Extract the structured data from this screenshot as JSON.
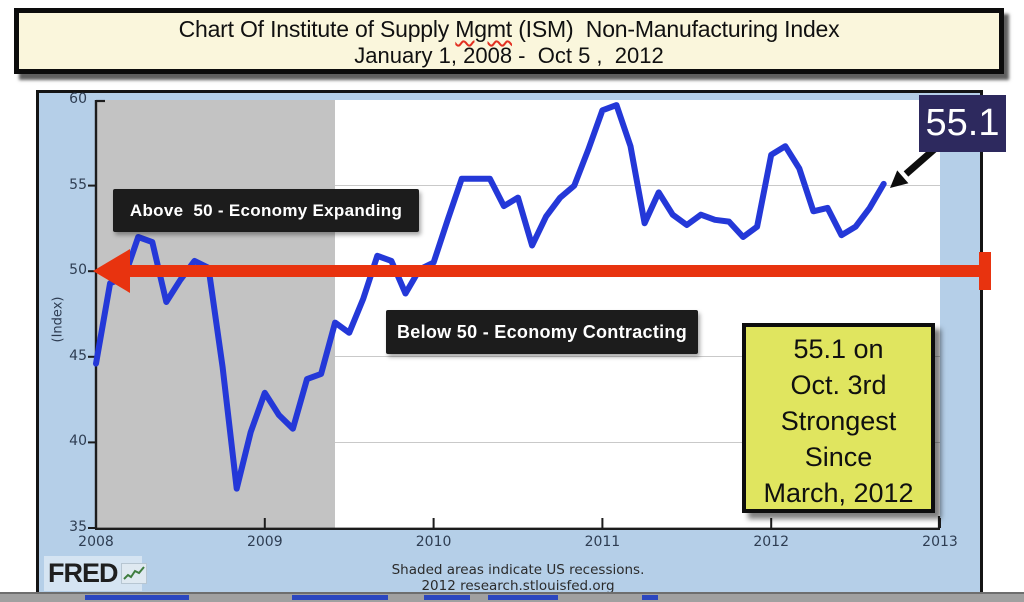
{
  "title": {
    "line1_part1": "Chart Of Institute of Supply ",
    "line1_misspelled": "Mgmt",
    "line1_part2": " (ISM)  Non-Manufacturing Index",
    "line2": "January 1, 2008 -  Oct 5 ,  2012"
  },
  "annotations": {
    "above_label": "Above  50 - Economy Expanding",
    "below_label": "Below 50 - Economy Contracting",
    "callout_value": "55.1",
    "note_lines": [
      "55.1 on",
      "Oct. 3rd",
      "Strongest",
      "Since",
      "March, 2012"
    ]
  },
  "axes": {
    "y_label": "(Index)",
    "y_ticks": [
      60,
      55,
      50,
      45,
      40,
      35
    ],
    "x_ticks": [
      "2008",
      "2009",
      "2010",
      "2011",
      "2012",
      "2013"
    ],
    "gridline_values": [
      55,
      50,
      45,
      40
    ]
  },
  "footer": {
    "recession_note": "Shaded areas indicate US recessions.",
    "source": "2012 research.stlouisfed.org",
    "logo_text": "FRED",
    "logo_icon": "sparkline-chart-icon"
  },
  "chart_data": {
    "type": "line",
    "title": "ISM Non-Manufacturing Index",
    "xlabel": "",
    "ylabel": "(Index)",
    "ylim": [
      35,
      60
    ],
    "xlim": [
      "2008",
      "2013"
    ],
    "frequency": "monthly",
    "x_start": "2008-01",
    "x_end": "2012-09",
    "grid": true,
    "recession_shading": {
      "from": "2008-01",
      "to": "2009-06"
    },
    "reference_line_value": 50,
    "series": [
      {
        "name": "ISM Non-Manufacturing Index",
        "values": [
          44.6,
          49.3,
          49.6,
          52.0,
          51.7,
          48.2,
          49.5,
          50.6,
          50.2,
          44.4,
          37.3,
          40.6,
          42.9,
          41.6,
          40.8,
          43.7,
          44.0,
          47.0,
          46.4,
          48.4,
          50.9,
          50.6,
          48.7,
          50.1,
          50.5,
          53.0,
          55.4,
          55.4,
          55.4,
          53.8,
          54.3,
          51.5,
          53.2,
          54.3,
          55.0,
          57.1,
          59.4,
          59.7,
          57.3,
          52.8,
          54.6,
          53.3,
          52.7,
          53.3,
          53.0,
          52.9,
          52.0,
          52.6,
          56.8,
          57.3,
          56.0,
          53.5,
          53.7,
          52.1,
          52.6,
          53.7,
          55.1
        ]
      }
    ],
    "last_point": {
      "value": 55.1,
      "release_date": "Oct. 3rd"
    }
  },
  "colors": {
    "banner-cream": "#faf6dc",
    "panel-blue": "#b5cfe8",
    "recession-gray": "#c3c3c3",
    "line-blue": "#2438d8",
    "arrow-red": "#e8330f",
    "navy": "#2d295e",
    "note-yellow": "#e0e55f",
    "box-black": "#1c1c1c",
    "axis-dark": "#2e3d52",
    "grid-gray": "#c9c9c9"
  }
}
